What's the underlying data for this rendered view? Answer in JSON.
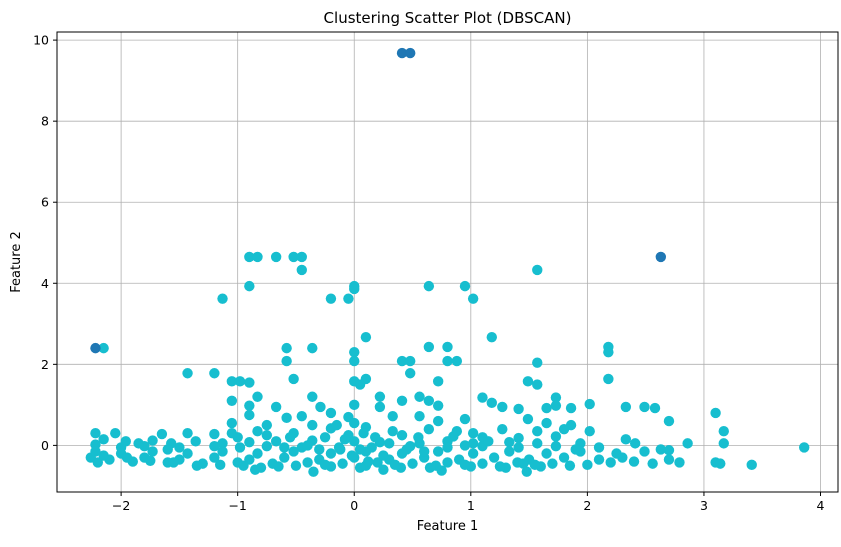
{
  "chart_data": {
    "type": "scatter",
    "title": "Clustering Scatter Plot (DBSCAN)",
    "xlabel": "Feature 1",
    "ylabel": "Feature 2",
    "xlim": [
      -2.55,
      4.15
    ],
    "ylim": [
      -1.15,
      10.2
    ],
    "xticks": [
      -2,
      -1,
      0,
      1,
      2,
      3,
      4
    ],
    "yticks": [
      0,
      2,
      4,
      6,
      8,
      10
    ],
    "grid": true,
    "legend": "none",
    "colors": {
      "cluster": "#17becf",
      "noise": "#1f77b4"
    },
    "series": [
      {
        "color": "#1f77b4",
        "points": [
          [
            0.41,
            9.68
          ],
          [
            0.48,
            9.68
          ],
          [
            2.63,
            4.65
          ],
          [
            -2.22,
            2.4
          ]
        ]
      },
      {
        "color": "#17becf",
        "points": [
          [
            -2.15,
            2.4
          ],
          [
            -0.9,
            4.65
          ],
          [
            -0.83,
            4.65
          ],
          [
            -0.67,
            4.65
          ],
          [
            -0.52,
            4.65
          ],
          [
            -0.45,
            4.65
          ],
          [
            -0.45,
            4.33
          ],
          [
            -0.9,
            3.93
          ],
          [
            -1.13,
            3.62
          ],
          [
            -0.2,
            3.62
          ],
          [
            -0.05,
            3.62
          ],
          [
            0.0,
            3.86
          ],
          [
            0.0,
            3.93
          ],
          [
            0.64,
            3.93
          ],
          [
            0.95,
            3.93
          ],
          [
            1.02,
            3.62
          ],
          [
            1.57,
            4.33
          ],
          [
            0.1,
            2.67
          ],
          [
            1.18,
            2.67
          ],
          [
            -0.58,
            2.4
          ],
          [
            -0.36,
            2.4
          ],
          [
            0.64,
            2.43
          ],
          [
            0.8,
            2.43
          ],
          [
            2.18,
            2.43
          ],
          [
            2.18,
            2.3
          ],
          [
            0.0,
            2.3
          ],
          [
            -0.58,
            2.08
          ],
          [
            0.0,
            2.08
          ],
          [
            0.41,
            2.08
          ],
          [
            0.48,
            2.08
          ],
          [
            0.8,
            2.08
          ],
          [
            0.88,
            2.08
          ],
          [
            1.57,
            2.04
          ],
          [
            0.48,
            1.78
          ],
          [
            -1.43,
            1.78
          ],
          [
            -1.2,
            1.78
          ],
          [
            -0.52,
            1.64
          ],
          [
            0.1,
            1.64
          ],
          [
            0.72,
            1.58
          ],
          [
            2.18,
            1.64
          ],
          [
            -1.05,
            1.58
          ],
          [
            -0.98,
            1.58
          ],
          [
            -0.9,
            1.55
          ],
          [
            0.0,
            1.58
          ],
          [
            0.05,
            1.5
          ],
          [
            1.49,
            1.58
          ],
          [
            1.57,
            1.5
          ],
          [
            -0.36,
            1.2
          ],
          [
            -0.83,
            1.2
          ],
          [
            0.22,
            1.2
          ],
          [
            0.56,
            1.2
          ],
          [
            1.1,
            1.18
          ],
          [
            1.73,
            1.18
          ],
          [
            -1.05,
            1.1
          ],
          [
            -0.9,
            0.98
          ],
          [
            -0.67,
            0.95
          ],
          [
            -0.29,
            0.95
          ],
          [
            0.0,
            1.0
          ],
          [
            0.22,
            0.95
          ],
          [
            0.41,
            1.1
          ],
          [
            0.64,
            1.1
          ],
          [
            0.72,
            0.98
          ],
          [
            1.18,
            1.05
          ],
          [
            1.27,
            0.95
          ],
          [
            1.41,
            0.9
          ],
          [
            1.65,
            0.92
          ],
          [
            1.73,
            0.98
          ],
          [
            1.86,
            0.92
          ],
          [
            2.02,
            1.02
          ],
          [
            2.33,
            0.95
          ],
          [
            2.49,
            0.95
          ],
          [
            2.58,
            0.92
          ],
          [
            3.1,
            0.8
          ],
          [
            -0.9,
            0.75
          ],
          [
            -0.58,
            0.68
          ],
          [
            -0.45,
            0.72
          ],
          [
            -0.2,
            0.8
          ],
          [
            0.33,
            0.72
          ],
          [
            0.56,
            0.72
          ],
          [
            0.72,
            0.6
          ],
          [
            0.95,
            0.65
          ],
          [
            1.49,
            0.65
          ],
          [
            1.65,
            0.55
          ],
          [
            1.86,
            0.5
          ],
          [
            2.7,
            0.6
          ],
          [
            3.17,
            0.35
          ],
          [
            -1.05,
            0.55
          ],
          [
            -0.75,
            0.5
          ],
          [
            -0.36,
            0.5
          ],
          [
            -0.2,
            0.42
          ],
          [
            0.1,
            0.45
          ],
          [
            0.33,
            0.35
          ],
          [
            0.64,
            0.4
          ],
          [
            0.88,
            0.35
          ],
          [
            1.02,
            0.3
          ],
          [
            1.27,
            0.4
          ],
          [
            1.57,
            0.35
          ],
          [
            1.8,
            0.4
          ],
          [
            2.02,
            0.35
          ],
          [
            -2.22,
            0.3
          ],
          [
            -2.05,
            0.3
          ],
          [
            -1.65,
            0.28
          ],
          [
            -1.43,
            0.3
          ],
          [
            -1.2,
            0.28
          ],
          [
            -1.05,
            0.3
          ],
          [
            -0.83,
            0.35
          ],
          [
            -0.52,
            0.3
          ],
          [
            -0.05,
            0.25
          ],
          [
            0.41,
            0.25
          ],
          [
            1.1,
            0.2
          ],
          [
            1.41,
            0.18
          ],
          [
            1.73,
            0.22
          ],
          [
            2.33,
            0.15
          ],
          [
            3.17,
            0.05
          ],
          [
            -2.15,
            0.15
          ],
          [
            -1.96,
            0.1
          ],
          [
            -1.73,
            0.12
          ],
          [
            -1.57,
            0.05
          ],
          [
            -1.36,
            0.1
          ],
          [
            -1.13,
            0.05
          ],
          [
            -0.9,
            0.08
          ],
          [
            -0.67,
            0.1
          ],
          [
            -0.36,
            0.12
          ],
          [
            0.0,
            0.1
          ],
          [
            0.22,
            0.08
          ],
          [
            0.56,
            0.05
          ],
          [
            0.8,
            0.1
          ],
          [
            1.02,
            0.05
          ],
          [
            1.33,
            0.08
          ],
          [
            1.57,
            0.05
          ],
          [
            1.94,
            0.05
          ],
          [
            2.41,
            0.05
          ],
          [
            2.86,
            0.05
          ],
          [
            -2.22,
            0.02
          ],
          [
            -2.0,
            -0.05
          ],
          [
            -1.8,
            -0.02
          ],
          [
            -1.5,
            -0.05
          ],
          [
            -1.2,
            -0.02
          ],
          [
            -0.98,
            -0.05
          ],
          [
            -0.75,
            -0.02
          ],
          [
            -0.45,
            -0.05
          ],
          [
            -0.13,
            -0.05
          ],
          [
            0.15,
            -0.05
          ],
          [
            0.48,
            -0.02
          ],
          [
            0.8,
            -0.05
          ],
          [
            1.1,
            -0.02
          ],
          [
            1.41,
            -0.05
          ],
          [
            1.73,
            -0.02
          ],
          [
            2.1,
            -0.05
          ],
          [
            2.63,
            -0.1
          ],
          [
            2.7,
            -0.12
          ],
          [
            3.86,
            -0.05
          ],
          [
            -2.22,
            -0.15
          ],
          [
            -2.0,
            -0.2
          ],
          [
            -1.73,
            -0.15
          ],
          [
            -1.43,
            -0.2
          ],
          [
            -1.13,
            -0.15
          ],
          [
            -0.83,
            -0.2
          ],
          [
            -0.52,
            -0.15
          ],
          [
            -0.2,
            -0.2
          ],
          [
            0.1,
            -0.15
          ],
          [
            0.41,
            -0.2
          ],
          [
            0.72,
            -0.15
          ],
          [
            1.02,
            -0.2
          ],
          [
            1.33,
            -0.15
          ],
          [
            1.65,
            -0.2
          ],
          [
            1.94,
            -0.15
          ],
          [
            2.25,
            -0.2
          ],
          [
            2.49,
            -0.15
          ],
          [
            -2.26,
            -0.3
          ],
          [
            -2.1,
            -0.35
          ],
          [
            -1.8,
            -0.3
          ],
          [
            -1.5,
            -0.35
          ],
          [
            -1.2,
            -0.3
          ],
          [
            -0.9,
            -0.35
          ],
          [
            -0.6,
            -0.3
          ],
          [
            -0.3,
            -0.35
          ],
          [
            0.0,
            -0.3
          ],
          [
            0.3,
            -0.35
          ],
          [
            0.6,
            -0.3
          ],
          [
            0.9,
            -0.35
          ],
          [
            1.2,
            -0.3
          ],
          [
            1.5,
            -0.35
          ],
          [
            1.8,
            -0.3
          ],
          [
            2.1,
            -0.35
          ],
          [
            2.4,
            -0.4
          ],
          [
            2.7,
            -0.35
          ],
          [
            -2.2,
            -0.42
          ],
          [
            -1.9,
            -0.4
          ],
          [
            -1.6,
            -0.42
          ],
          [
            -1.3,
            -0.45
          ],
          [
            -1.0,
            -0.42
          ],
          [
            -0.7,
            -0.45
          ],
          [
            -0.4,
            -0.42
          ],
          [
            -0.1,
            -0.45
          ],
          [
            0.2,
            -0.42
          ],
          [
            0.5,
            -0.45
          ],
          [
            0.8,
            -0.42
          ],
          [
            1.1,
            -0.45
          ],
          [
            1.4,
            -0.42
          ],
          [
            1.7,
            -0.45
          ],
          [
            2.0,
            -0.48
          ],
          [
            2.2,
            -0.42
          ],
          [
            2.56,
            -0.45
          ],
          [
            2.79,
            -0.42
          ],
          [
            3.1,
            -0.42
          ],
          [
            3.14,
            -0.45
          ],
          [
            3.41,
            -0.48
          ],
          [
            -0.8,
            -0.55
          ],
          [
            -0.5,
            -0.5
          ],
          [
            -0.2,
            -0.52
          ],
          [
            0.1,
            -0.5
          ],
          [
            0.4,
            -0.55
          ],
          [
            0.7,
            -0.5
          ],
          [
            1.0,
            -0.52
          ],
          [
            1.3,
            -0.55
          ],
          [
            1.6,
            -0.52
          ],
          [
            -0.85,
            -0.6
          ],
          [
            -0.35,
            -0.65
          ],
          [
            0.25,
            -0.6
          ],
          [
            0.75,
            -0.62
          ],
          [
            1.48,
            -0.65
          ],
          [
            -0.95,
            -0.5
          ],
          [
            -0.65,
            -0.52
          ],
          [
            -0.25,
            -0.48
          ],
          [
            0.05,
            -0.55
          ],
          [
            0.35,
            -0.48
          ],
          [
            0.65,
            -0.55
          ],
          [
            0.95,
            -0.48
          ],
          [
            1.25,
            -0.52
          ],
          [
            1.55,
            -0.48
          ],
          [
            1.85,
            -0.5
          ],
          [
            -1.15,
            -0.48
          ],
          [
            -1.35,
            -0.5
          ],
          [
            -1.55,
            -0.42
          ],
          [
            -1.75,
            -0.38
          ],
          [
            -1.95,
            -0.3
          ],
          [
            -2.15,
            -0.25
          ],
          [
            -0.05,
            0.7
          ],
          [
            -0.15,
            0.5
          ],
          [
            0.0,
            0.55
          ],
          [
            0.08,
            0.3
          ],
          [
            -0.08,
            0.15
          ],
          [
            0.05,
            -0.1
          ],
          [
            -0.02,
            -0.25
          ],
          [
            0.12,
            -0.4
          ],
          [
            -0.12,
            -0.1
          ],
          [
            0.18,
            0.2
          ],
          [
            0.25,
            -0.25
          ],
          [
            -0.25,
            0.2
          ],
          [
            -0.3,
            -0.1
          ],
          [
            0.3,
            0.05
          ],
          [
            -0.6,
            -0.05
          ],
          [
            -0.55,
            0.2
          ],
          [
            0.55,
            0.2
          ],
          [
            0.6,
            -0.15
          ],
          [
            -0.75,
            0.25
          ],
          [
            0.85,
            0.22
          ],
          [
            -1.0,
            0.2
          ],
          [
            1.15,
            0.1
          ],
          [
            -1.6,
            -0.1
          ],
          [
            1.9,
            -0.1
          ],
          [
            2.3,
            -0.3
          ],
          [
            -1.85,
            0.05
          ],
          [
            1.45,
            -0.45
          ],
          [
            -0.4,
            0.0
          ],
          [
            0.45,
            -0.1
          ],
          [
            0.95,
            0.0
          ]
        ]
      }
    ]
  }
}
